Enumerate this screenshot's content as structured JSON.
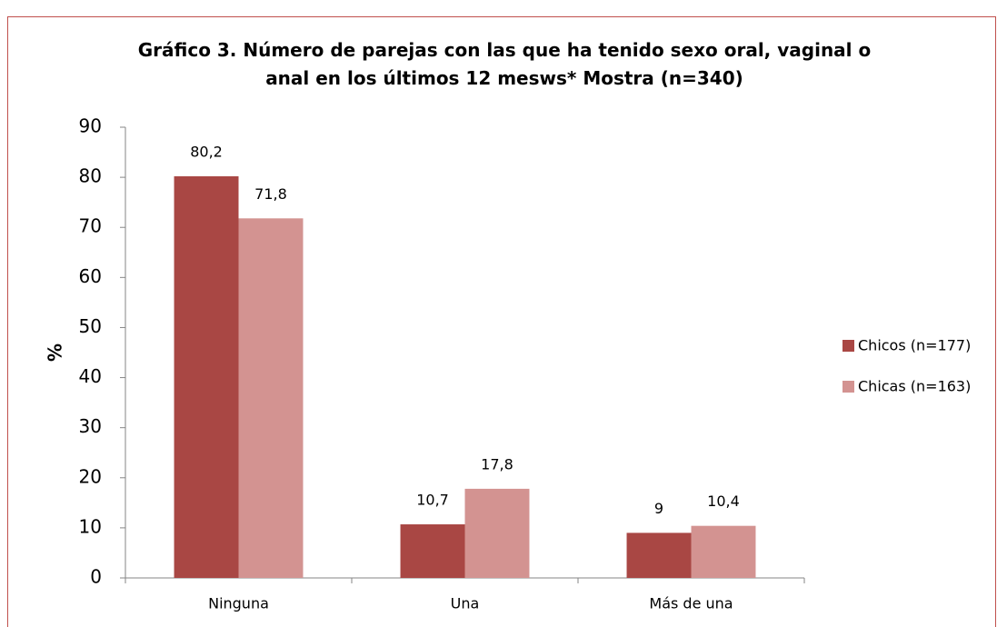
{
  "chart_data": {
    "type": "bar",
    "title": "Gráfico 3. Número de parejas con las que ha tenido sexo oral, vaginal o anal en los últimos 12 mesws* Mostra (n=340)",
    "ylabel": "%",
    "categories": [
      "Ninguna",
      "Una",
      "Más de una"
    ],
    "series": [
      {
        "name": "Chicos (n=177)",
        "color": "#a94744",
        "values": [
          80.2,
          10.7,
          9
        ],
        "value_labels": [
          "80,2",
          "10,7",
          "9"
        ]
      },
      {
        "name": "Chicas (n=163)",
        "color": "#d39391",
        "values": [
          71.8,
          17.8,
          10.4
        ],
        "value_labels": [
          "71,8",
          "17,8",
          "10,4"
        ]
      }
    ],
    "ylim": [
      0,
      90
    ],
    "yticks": [
      0,
      10,
      20,
      30,
      40,
      50,
      60,
      70,
      80,
      90
    ],
    "grid": false,
    "legend": "right"
  }
}
